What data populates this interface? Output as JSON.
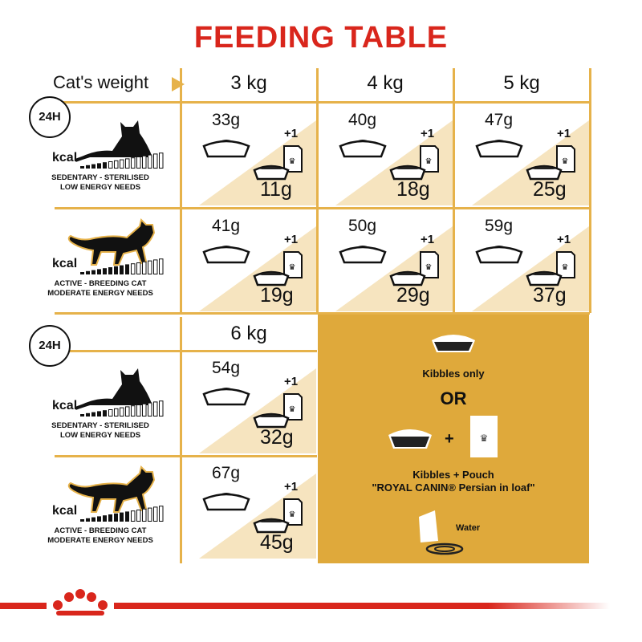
{
  "title": "FEEDING TABLE",
  "header": {
    "weight_label": "Cat's weight",
    "weights": [
      "3 kg",
      "4 kg",
      "5 kg"
    ],
    "weight_6": "6 kg"
  },
  "clock_label": "24H",
  "profiles": [
    {
      "kcal": "kcal",
      "line1": "SEDENTARY - STERILISED",
      "line2": "LOW ENERGY NEEDS",
      "icon": "lying-cat-icon"
    },
    {
      "kcal": "kcal",
      "line1": "ACTIVE - BREEDING CAT",
      "line2": "MODERATE ENERGY NEEDS",
      "icon": "walking-cat-icon"
    }
  ],
  "table": {
    "plus_label": "+1",
    "rows": [
      [
        {
          "kibbles_only": "33g",
          "with_pouch": "11g"
        },
        {
          "kibbles_only": "40g",
          "with_pouch": "18g"
        },
        {
          "kibbles_only": "47g",
          "with_pouch": "25g"
        }
      ],
      [
        {
          "kibbles_only": "41g",
          "with_pouch": "19g"
        },
        {
          "kibbles_only": "50g",
          "with_pouch": "29g"
        },
        {
          "kibbles_only": "59g",
          "with_pouch": "37g"
        }
      ],
      [
        {
          "kibbles_only": "54g",
          "with_pouch": "32g"
        }
      ],
      [
        {
          "kibbles_only": "67g",
          "with_pouch": "45g"
        }
      ]
    ]
  },
  "legend": {
    "kibbles_only": "Kibbles only",
    "or": "OR",
    "plus": "+",
    "kibbles_pouch": "Kibbles + Pouch",
    "product": "\"ROYAL CANIN® Persian in loaf\"",
    "water": "Water"
  },
  "colors": {
    "title": "#d9261c",
    "grid": "#e6b24a",
    "panel": "#dfa93b",
    "triangle": "#f6e4bf"
  }
}
